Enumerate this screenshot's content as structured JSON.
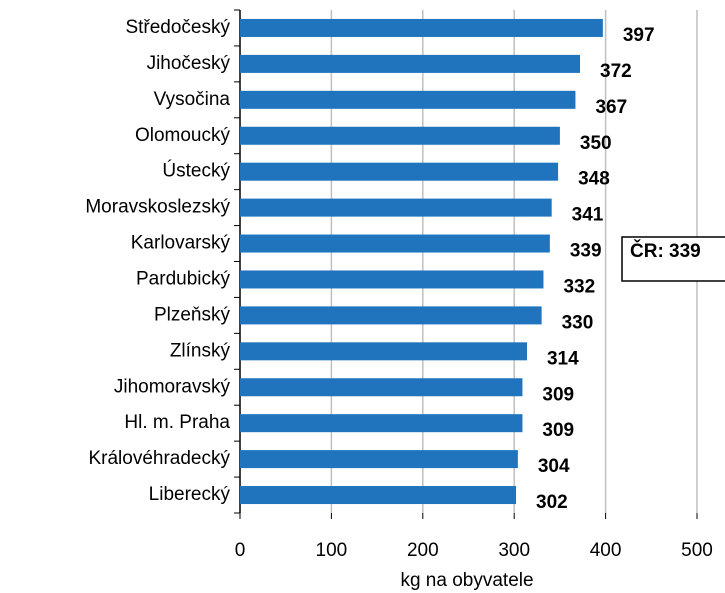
{
  "chart_data": {
    "type": "bar",
    "orientation": "horizontal",
    "categories": [
      "Středočeský",
      "Jihočeský",
      "Vysočina",
      "Olomoucký",
      "Ústecký",
      "Moravskoslezský",
      "Karlovarský",
      "Pardubický",
      "Plzeňský",
      "Zlínský",
      "Jihomoravský",
      "Hl. m. Praha",
      "Královéhradecký",
      "Liberecký"
    ],
    "values": [
      397,
      372,
      367,
      350,
      348,
      341,
      339,
      332,
      330,
      314,
      309,
      309,
      304,
      302
    ],
    "color": "#1f74bd",
    "xlim": [
      0,
      500
    ],
    "xticks": [
      0,
      100,
      200,
      300,
      400,
      500
    ],
    "xlabel": "kg na obyvatele",
    "annotation": "ČR: 339",
    "grid": true
  }
}
